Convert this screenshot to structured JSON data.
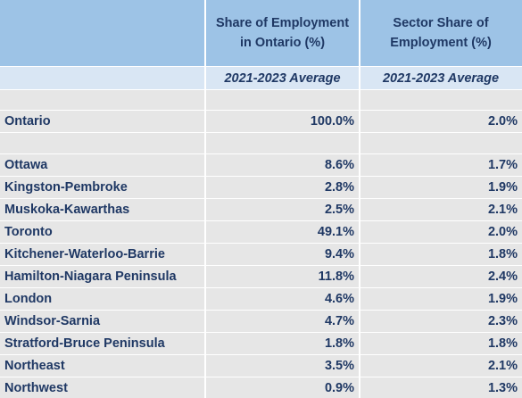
{
  "header": {
    "col1": "",
    "col2": "Share of Employment in Ontario (%)",
    "col3": "Sector Share of Employment (%)"
  },
  "subheader": {
    "col2": "2021-2023 Average",
    "col3": "2021-2023 Average"
  },
  "ontario": {
    "region": "Ontario",
    "share": "100.0%",
    "sector_share": "2.0%"
  },
  "rows": [
    {
      "region": "Ottawa",
      "share": "8.6%",
      "sector_share": "1.7%"
    },
    {
      "region": "Kingston-Pembroke",
      "share": "2.8%",
      "sector_share": "1.9%"
    },
    {
      "region": "Muskoka-Kawarthas",
      "share": "2.5%",
      "sector_share": "2.1%"
    },
    {
      "region": "Toronto",
      "share": "49.1%",
      "sector_share": "2.0%"
    },
    {
      "region": "Kitchener-Waterloo-Barrie",
      "share": "9.4%",
      "sector_share": "1.8%"
    },
    {
      "region": "Hamilton-Niagara Peninsula",
      "share": "11.8%",
      "sector_share": "2.4%"
    },
    {
      "region": "London",
      "share": "4.6%",
      "sector_share": "1.9%"
    },
    {
      "region": "Windsor-Sarnia",
      "share": "4.7%",
      "sector_share": "2.3%"
    },
    {
      "region": "Stratford-Bruce Peninsula",
      "share": "1.8%",
      "sector_share": "1.8%"
    },
    {
      "region": "Northeast",
      "share": "3.5%",
      "sector_share": "2.1%"
    },
    {
      "region": "Northwest",
      "share": "0.9%",
      "sector_share": "1.3%"
    }
  ]
}
